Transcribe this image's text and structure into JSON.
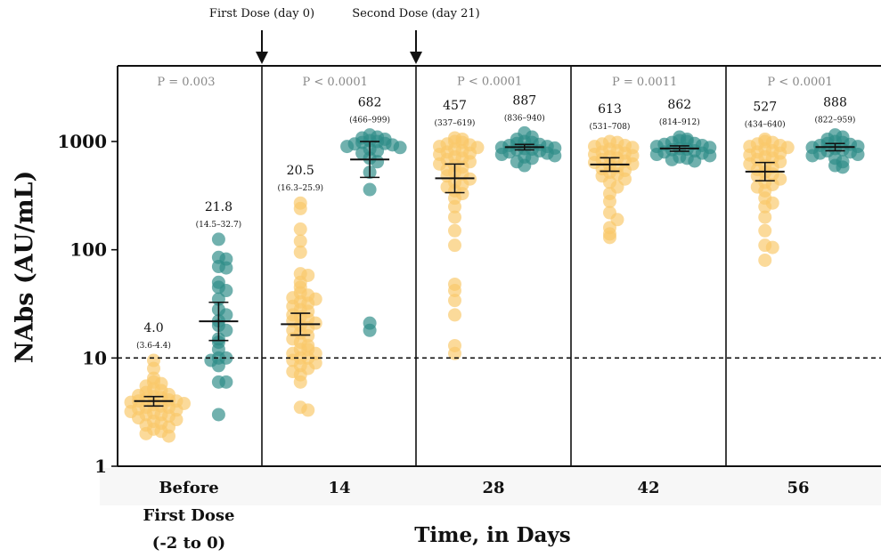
{
  "chart_data": {
    "type": "scatter",
    "ylabel": "NAbs (AU/mL)",
    "xlabel": "Time, in Days",
    "yscale": "log",
    "ylim": [
      1,
      5000
    ],
    "yticks": [
      1,
      10,
      100,
      1000
    ],
    "ytick_labels": [
      "1",
      "10",
      "100",
      "1000"
    ],
    "threshold": 10,
    "dose_annotations": [
      {
        "label": "First Dose (day 0)"
      },
      {
        "label": "Second Dose (day 21)"
      }
    ],
    "groups": [
      {
        "label_lines": [
          "Before",
          "First Dose",
          "(-2 to 0)"
        ],
        "p_value": "P = 0.003",
        "series": [
          {
            "color": "#F9C86A",
            "mean": 4.0,
            "mean_label": "4.0",
            "ci": [
              3.6,
              4.4
            ],
            "ci_label": "(3.6-4.4)",
            "values": [
              9.5,
              8.0,
              6.5,
              6.0,
              5.8,
              5.5,
              5.2,
              5.0,
              4.8,
              4.6,
              4.5,
              4.4,
              4.3,
              4.2,
              4.1,
              4.0,
              4.0,
              3.9,
              3.8,
              3.7,
              3.6,
              3.5,
              3.5,
              3.4,
              3.3,
              3.2,
              3.1,
              3.0,
              3.0,
              2.9,
              2.8,
              2.7,
              2.6,
              2.5,
              2.4,
              2.3,
              2.2,
              2.1,
              2.0,
              1.9
            ]
          },
          {
            "color": "#2E8C87",
            "mean": 21.8,
            "mean_label": "21.8",
            "ci": [
              14.5,
              32.7
            ],
            "ci_label": "(14.5–32.7)",
            "values": [
              125,
              85,
              82,
              70,
              68,
              50,
              45,
              42,
              35,
              28,
              25,
              22,
              20,
              18,
              15,
              14,
              12,
              10,
              10,
              9.5,
              8.5,
              6.0,
              6.0,
              3.0
            ]
          }
        ]
      },
      {
        "label_lines": [
          "14"
        ],
        "p_value": "P < 0.0001",
        "series": [
          {
            "color": "#F9C86A",
            "mean": 20.5,
            "mean_label": "20.5",
            "ci": [
              16.3,
              25.9
            ],
            "ci_label": "(16.3–25.9)",
            "values": [
              270,
              240,
              155,
              120,
              95,
              60,
              58,
              50,
              45,
              40,
              38,
              36,
              35,
              33,
              32,
              30,
              28,
              27,
              25,
              24,
              23,
              22,
              21,
              20,
              19,
              18,
              17,
              16,
              15,
              14,
              13,
              12,
              12,
              11,
              11,
              10,
              10,
              9.5,
              9.0,
              8.5,
              8.0,
              7.5,
              7.0,
              6.0,
              3.5,
              3.3
            ]
          },
          {
            "color": "#2E8C87",
            "mean": 682,
            "mean_label": "682",
            "ci": [
              466,
              999
            ],
            "ci_label": "(466–999)",
            "values": [
              1150,
              1100,
              1080,
              1050,
              1020,
              1000,
              980,
              960,
              950,
              930,
              900,
              880,
              850,
              820,
              780,
              700,
              650,
              520,
              360,
              21,
              18
            ]
          }
        ]
      },
      {
        "label_lines": [
          "28"
        ],
        "p_value": "P < 0.0001",
        "series": [
          {
            "color": "#F9C86A",
            "mean": 457,
            "mean_label": "457",
            "ci": [
              337,
              619
            ],
            "ci_label": "(337–619)",
            "values": [
              1080,
              1050,
              1000,
              980,
              950,
              930,
              900,
              880,
              850,
              820,
              800,
              780,
              760,
              720,
              700,
              680,
              650,
              620,
              600,
              580,
              550,
              520,
              500,
              480,
              450,
              420,
              400,
              380,
              350,
              330,
              300,
              250,
              200,
              150,
              110,
              48,
              42,
              34,
              25,
              13,
              11
            ]
          },
          {
            "color": "#2E8C87",
            "mean": 887,
            "mean_label": "887",
            "ci": [
              836,
              940
            ],
            "ci_label": "(836–940)",
            "values": [
              1200,
              1100,
              1050,
              1000,
              980,
              960,
              940,
              920,
              900,
              880,
              870,
              860,
              850,
              840,
              820,
              800,
              780,
              760,
              740,
              720,
              700,
              650,
              600
            ]
          }
        ]
      },
      {
        "label_lines": [
          "42"
        ],
        "p_value": "P = 0.0011",
        "series": [
          {
            "color": "#F9C86A",
            "mean": 613,
            "mean_label": "613",
            "ci": [
              531,
              708
            ],
            "ci_label": "(531–708)",
            "values": [
              1000,
              980,
              950,
              920,
              900,
              880,
              850,
              820,
              800,
              780,
              760,
              740,
              720,
              700,
              680,
              660,
              640,
              620,
              600,
              580,
              560,
              540,
              520,
              500,
              480,
              450,
              420,
              380,
              330,
              280,
              220,
              190,
              160,
              140,
              130
            ]
          },
          {
            "color": "#2E8C87",
            "mean": 862,
            "mean_label": "862",
            "ci": [
              814,
              912
            ],
            "ci_label": "(814–912)",
            "values": [
              1100,
              1050,
              1020,
              1000,
              980,
              960,
              940,
              920,
              900,
              880,
              860,
              850,
              840,
              820,
              800,
              780,
              760,
              740,
              720,
              700,
              680,
              660
            ]
          }
        ]
      },
      {
        "label_lines": [
          "56"
        ],
        "p_value": "P < 0.0001",
        "series": [
          {
            "color": "#F9C86A",
            "mean": 527,
            "mean_label": "527",
            "ci": [
              434,
              640
            ],
            "ci_label": "(434–640)",
            "values": [
              1050,
              1000,
              980,
              950,
              920,
              900,
              880,
              850,
              820,
              800,
              780,
              750,
              720,
              700,
              680,
              650,
              620,
              600,
              580,
              550,
              520,
              500,
              480,
              450,
              420,
              400,
              380,
              350,
              300,
              270,
              250,
              200,
              150,
              110,
              105,
              80
            ]
          },
          {
            "color": "#2E8C87",
            "mean": 888,
            "mean_label": "888",
            "ci": [
              822,
              959
            ],
            "ci_label": "(822–959)",
            "values": [
              1150,
              1100,
              1050,
              1000,
              980,
              960,
              940,
              920,
              900,
              880,
              860,
              840,
              820,
              800,
              780,
              760,
              740,
              700,
              650,
              600,
              580
            ]
          }
        ]
      }
    ]
  }
}
